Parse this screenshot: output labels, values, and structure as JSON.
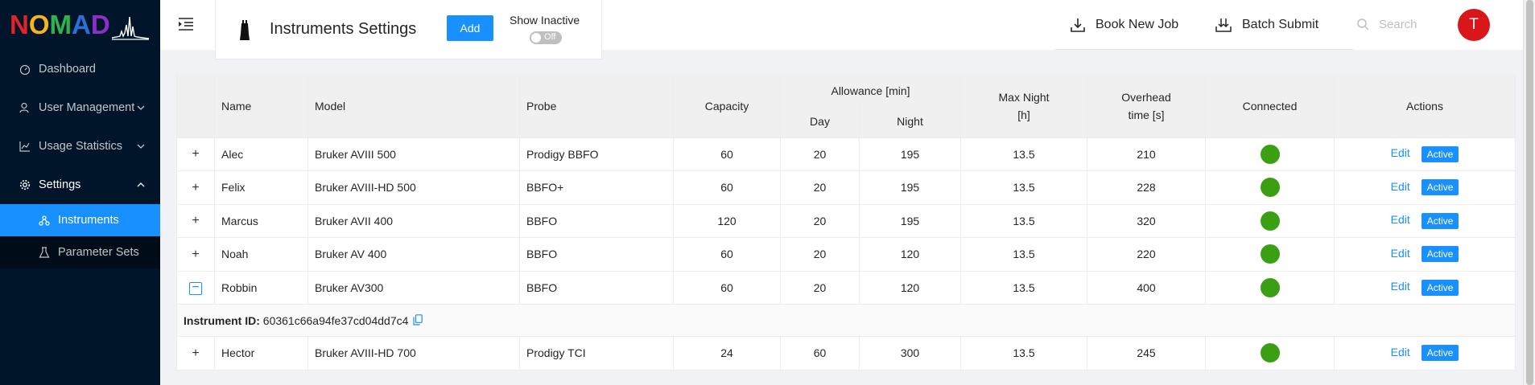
{
  "sidebar": {
    "logo": {
      "letters": [
        {
          "ch": "N",
          "color": "#e0242a"
        },
        {
          "ch": "O",
          "color": "#f6b51b"
        },
        {
          "ch": "M",
          "color": "#30b34a"
        },
        {
          "ch": "A",
          "color": "#2c6fd6"
        },
        {
          "ch": "D",
          "color": "#8e2ec9"
        }
      ]
    },
    "items": [
      {
        "label": "Dashboard"
      },
      {
        "label": "User Management"
      },
      {
        "label": "Usage Statistics"
      },
      {
        "label": "Settings"
      }
    ],
    "sub_items": [
      {
        "label": "Instruments"
      },
      {
        "label": "Parameter Sets"
      }
    ]
  },
  "header": {
    "title": "Instruments Settings",
    "add_label": "Add",
    "show_inactive_label": "Show Inactive",
    "toggle_text": "Off",
    "book_label": "Book New Job",
    "batch_label": "Batch Submit",
    "search_placeholder": "Search",
    "avatar_letter": "T"
  },
  "table": {
    "headers": {
      "name": "Name",
      "model": "Model",
      "probe": "Probe",
      "capacity": "Capacity",
      "allowance": "Allowance [min]",
      "day": "Day",
      "night": "Night",
      "max_night_1": "Max Night",
      "max_night_2": "[h]",
      "overhead_1": "Overhead",
      "overhead_2": "time [s]",
      "connected": "Connected",
      "actions": "Actions"
    },
    "edit_label": "Edit",
    "active_label": "Active",
    "expanded_label": "Instrument ID:",
    "expanded_value": "60361c66a94fe37cd04dd7c4",
    "rows": [
      {
        "name": "Alec",
        "model": "Bruker AVIII 500",
        "probe": "Prodigy BBFO",
        "capacity": "60",
        "day": "20",
        "night": "195",
        "max_night": "13.5",
        "overhead": "210",
        "expanded": false
      },
      {
        "name": "Felix",
        "model": "Bruker AVIII-HD 500",
        "probe": "BBFO+",
        "capacity": "60",
        "day": "20",
        "night": "195",
        "max_night": "13.5",
        "overhead": "228",
        "expanded": false
      },
      {
        "name": "Marcus",
        "model": "Bruker AVII 400",
        "probe": "BBFO",
        "capacity": "120",
        "day": "20",
        "night": "195",
        "max_night": "13.5",
        "overhead": "320",
        "expanded": false
      },
      {
        "name": "Noah",
        "model": "Bruker AV 400",
        "probe": "BBFO",
        "capacity": "60",
        "day": "20",
        "night": "120",
        "max_night": "13.5",
        "overhead": "220",
        "expanded": false
      },
      {
        "name": "Robbin",
        "model": "Bruker AV300",
        "probe": "BBFO",
        "capacity": "60",
        "day": "20",
        "night": "120",
        "max_night": "13.5",
        "overhead": "400",
        "expanded": true
      },
      {
        "name": "Hector",
        "model": "Bruker AVIII-HD 700",
        "probe": "Prodigy TCI",
        "capacity": "24",
        "day": "60",
        "night": "300",
        "max_night": "13.5",
        "overhead": "245",
        "expanded": false
      }
    ]
  }
}
